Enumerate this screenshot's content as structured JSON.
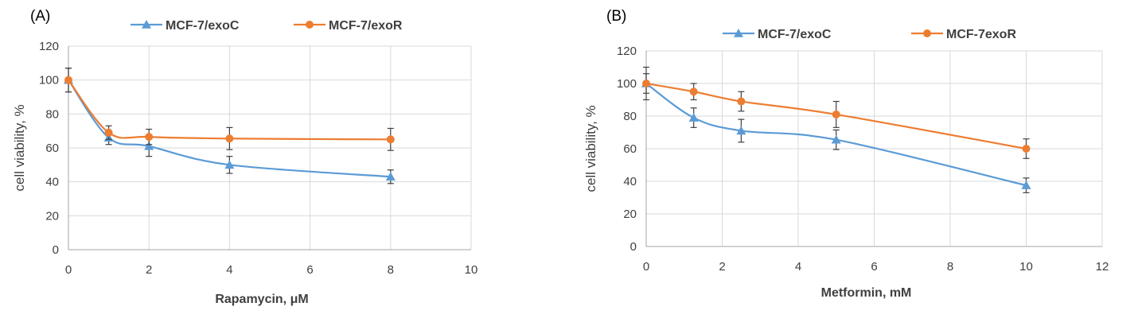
{
  "chart_data": [
    {
      "panel": "(A)",
      "type": "line",
      "xlabel": "Rapamycin, μM",
      "ylabel": "cell viability, %",
      "xlim": [
        0,
        10
      ],
      "ylim": [
        0,
        120
      ],
      "xticks": [
        0,
        2,
        4,
        6,
        8,
        10
      ],
      "yticks": [
        0,
        20,
        40,
        60,
        80,
        100,
        120
      ],
      "grid": true,
      "legend": "top",
      "series": [
        {
          "name": "MCF-7/exoC",
          "color": "#5b9bd5",
          "marker": "triangle",
          "x": [
            0,
            1,
            2,
            4,
            8
          ],
          "y": [
            100,
            66,
            61,
            50,
            43
          ],
          "err": [
            7,
            4,
            6,
            5,
            4
          ]
        },
        {
          "name": "MCF-7/exoR",
          "color": "#ed7d31",
          "marker": "circle",
          "x": [
            0,
            1,
            2,
            4,
            8
          ],
          "y": [
            100,
            69,
            66.5,
            65.5,
            65
          ],
          "err": [
            7,
            4,
            4.5,
            6.5,
            6.5
          ]
        }
      ]
    },
    {
      "panel": "(B)",
      "type": "line",
      "xlabel": "Metformin, mM",
      "ylabel": "cell viability, %",
      "xlim": [
        0,
        12
      ],
      "ylim": [
        0,
        120
      ],
      "xticks": [
        0,
        2,
        4,
        6,
        8,
        10,
        12
      ],
      "yticks": [
        0,
        20,
        40,
        60,
        80,
        100,
        120
      ],
      "grid": true,
      "legend": "top",
      "series": [
        {
          "name": "MCF-7/exoC",
          "color": "#5b9bd5",
          "marker": "triangle",
          "x": [
            0,
            1.25,
            2.5,
            5,
            10
          ],
          "y": [
            100,
            79,
            71,
            65.5,
            37.5
          ],
          "err": [
            10,
            6,
            7,
            6,
            4.5
          ]
        },
        {
          "name": "MCF-7exoR",
          "color": "#ed7d31",
          "marker": "circle",
          "x": [
            0,
            1.25,
            2.5,
            5,
            10
          ],
          "y": [
            100,
            95,
            89,
            81,
            60
          ],
          "err": [
            6,
            5,
            6,
            8,
            6
          ]
        }
      ]
    }
  ]
}
